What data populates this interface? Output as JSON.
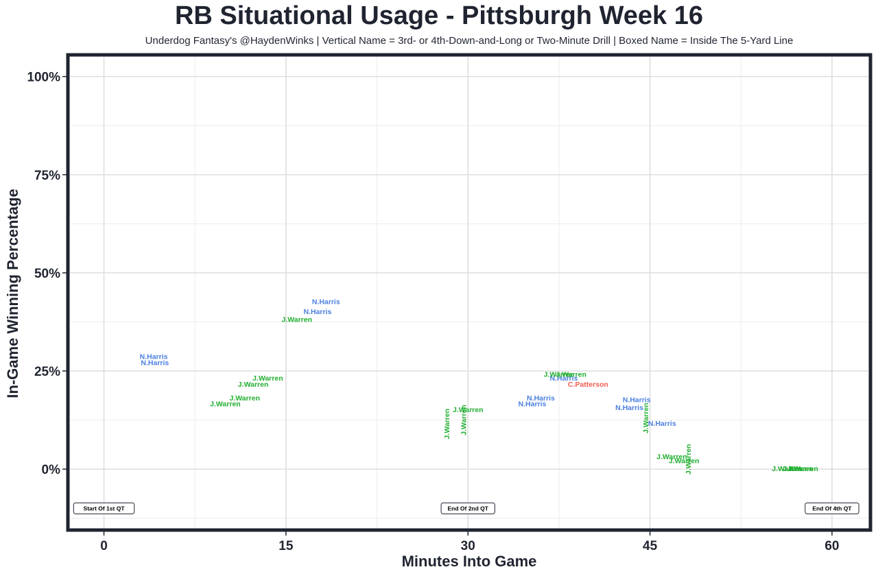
{
  "chart_data": {
    "type": "scatter",
    "title": "RB Situational Usage - Pittsburgh Week 16",
    "subtitle": "Underdog Fantasy's @HaydenWinks | Vertical Name = 3rd- or 4th-Down-and-Long or Two-Minute Drill | Boxed Name = Inside The 5-Yard Line",
    "xlabel": "Minutes Into Game",
    "ylabel": "In-Game Winning Percentage",
    "xlim": [
      -2.8,
      63
    ],
    "ylim": [
      -15,
      105
    ],
    "x_ticks": [
      0,
      15,
      30,
      45,
      60
    ],
    "x_tick_labels": [
      "0",
      "15",
      "30",
      "45",
      "60"
    ],
    "y_ticks": [
      0,
      25,
      50,
      75,
      100
    ],
    "y_tick_labels": [
      "0%",
      "25%",
      "50%",
      "75%",
      "100%"
    ],
    "grid": true,
    "legend": "none",
    "colors": {
      "N.Harris": "#4a7fe0",
      "J.Warren": "#1fae2f",
      "C.Patterson": "#f05a4f"
    },
    "points": [
      {
        "player": "N.Harris",
        "x": 4.1,
        "y": 28.5,
        "vertical": false
      },
      {
        "player": "N.Harris",
        "x": 4.2,
        "y": 27.0,
        "vertical": false
      },
      {
        "player": "N.Harris",
        "x": 18.3,
        "y": 42.5,
        "vertical": false
      },
      {
        "player": "N.Harris",
        "x": 17.6,
        "y": 40.0,
        "vertical": false
      },
      {
        "player": "J.Warren",
        "x": 15.9,
        "y": 38.0,
        "vertical": false
      },
      {
        "player": "J.Warren",
        "x": 13.5,
        "y": 23.0,
        "vertical": false
      },
      {
        "player": "J.Warren",
        "x": 12.3,
        "y": 21.5,
        "vertical": false
      },
      {
        "player": "J.Warren",
        "x": 11.6,
        "y": 18.0,
        "vertical": false
      },
      {
        "player": "J.Warren",
        "x": 10.0,
        "y": 16.5,
        "vertical": false
      },
      {
        "player": "J.Warren",
        "x": 28.3,
        "y": 11.5,
        "vertical": true
      },
      {
        "player": "J.Warren",
        "x": 29.7,
        "y": 12.5,
        "vertical": true
      },
      {
        "player": "J.Warren",
        "x": 30.0,
        "y": 15.0,
        "vertical": false
      },
      {
        "player": "N.Harris",
        "x": 36.0,
        "y": 18.0,
        "vertical": false
      },
      {
        "player": "N.Harris",
        "x": 35.3,
        "y": 16.5,
        "vertical": false
      },
      {
        "player": "N.Harris",
        "x": 37.9,
        "y": 23.0,
        "vertical": false
      },
      {
        "player": "J.Warren",
        "x": 37.5,
        "y": 24.0,
        "vertical": false
      },
      {
        "player": "J.Warren",
        "x": 38.5,
        "y": 24.0,
        "vertical": false
      },
      {
        "player": "C.Patterson",
        "x": 39.9,
        "y": 21.5,
        "vertical": false
      },
      {
        "player": "N.Harris",
        "x": 43.9,
        "y": 17.5,
        "vertical": false
      },
      {
        "player": "N.Harris",
        "x": 43.3,
        "y": 15.5,
        "vertical": false
      },
      {
        "player": "J.Warren",
        "x": 44.7,
        "y": 13.0,
        "vertical": true
      },
      {
        "player": "N.Harris",
        "x": 46.0,
        "y": 11.5,
        "vertical": false
      },
      {
        "player": "J.Warren",
        "x": 46.8,
        "y": 3.0,
        "vertical": false
      },
      {
        "player": "J.Warren",
        "x": 47.8,
        "y": 2.0,
        "vertical": false
      },
      {
        "player": "J.Warren",
        "x": 48.2,
        "y": 2.5,
        "vertical": true
      },
      {
        "player": "J.Warren",
        "x": 56.3,
        "y": 0.0,
        "vertical": false
      },
      {
        "player": "J.Warren",
        "x": 57.2,
        "y": 0.0,
        "vertical": false
      },
      {
        "player": "J.Warren",
        "x": 57.6,
        "y": 0.0,
        "vertical": false
      }
    ],
    "annotations": [
      {
        "label": "Start Of 1st QT",
        "x": 0,
        "y": -10
      },
      {
        "label": "End Of 2nd QT",
        "x": 30,
        "y": -10
      },
      {
        "label": "End Of 4th QT",
        "x": 60,
        "y": -10
      }
    ]
  }
}
